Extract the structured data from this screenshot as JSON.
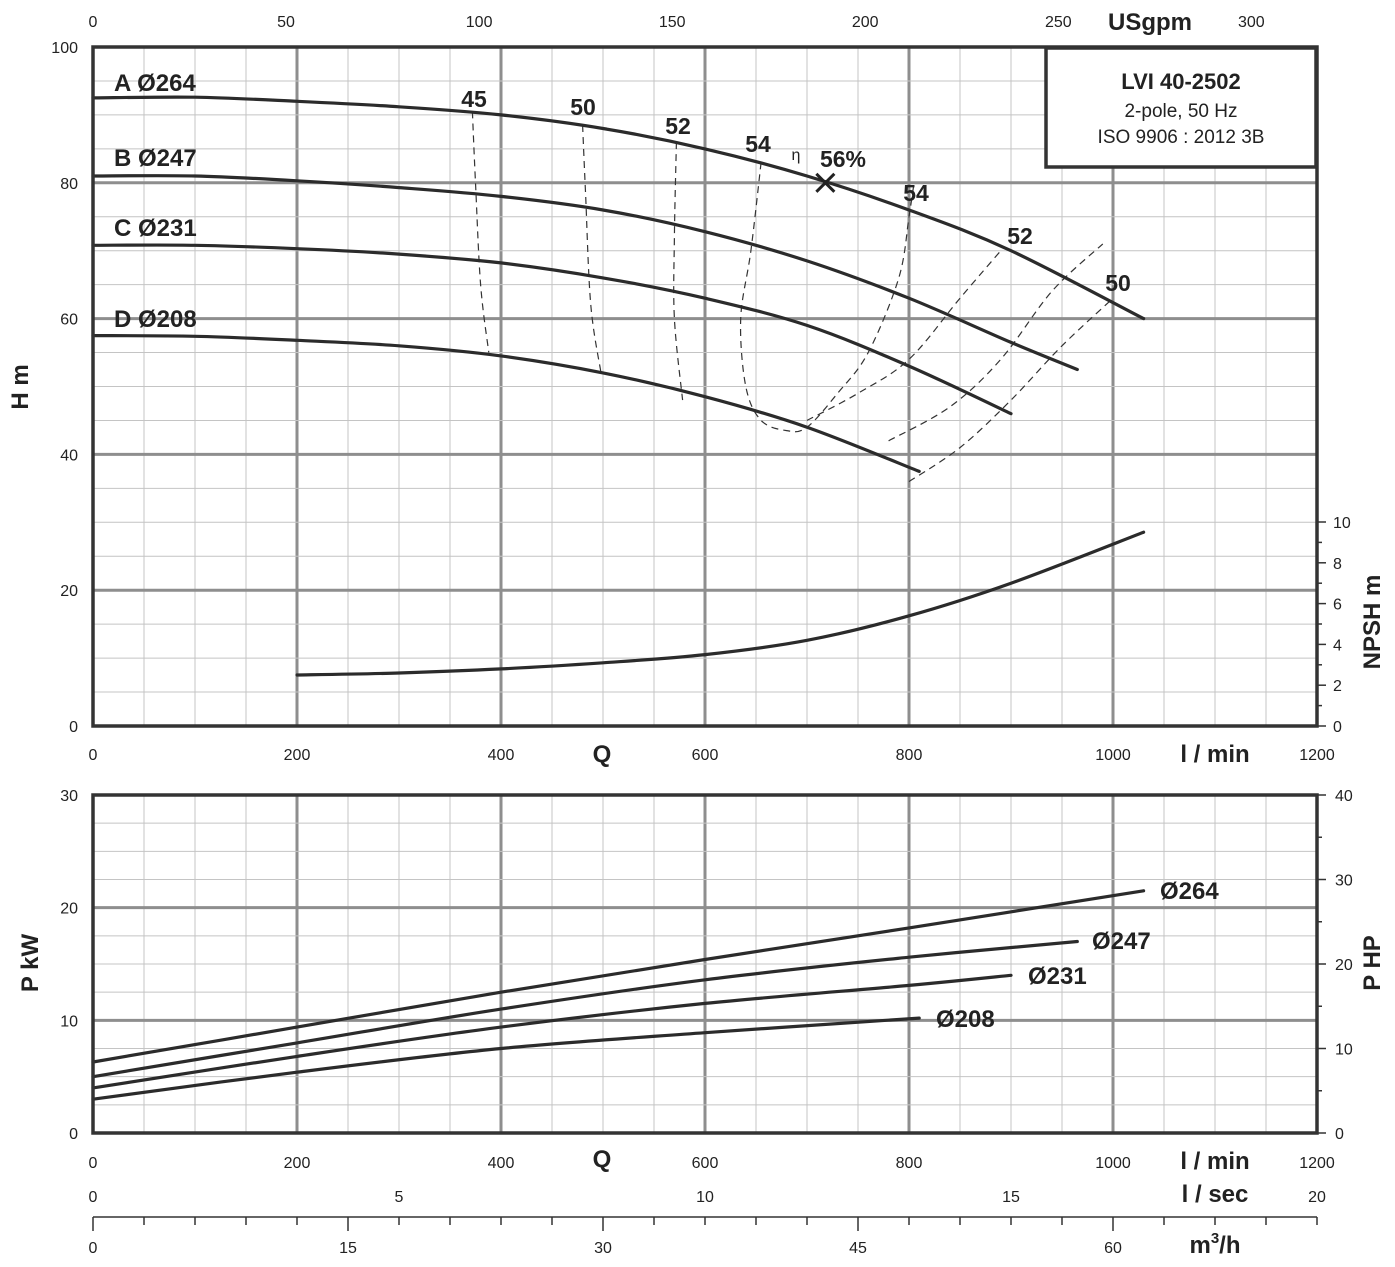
{
  "chart_data": {
    "type": "line",
    "info_box": {
      "model": "LVI 40-2502",
      "line2": "2-pole, 50 Hz",
      "line3": "ISO 9906 : 2012 3B"
    },
    "axes": {
      "q_lmin": {
        "label_left": "Q",
        "unit": "l / min",
        "range": [
          0,
          1200
        ],
        "ticks": [
          0,
          200,
          400,
          600,
          800,
          1000,
          1200
        ]
      },
      "q_usgpm": {
        "unit": "USgpm",
        "range": [
          0,
          317
        ],
        "ticks": [
          0,
          50,
          100,
          150,
          200,
          250,
          300
        ]
      },
      "q_lsec": {
        "unit": "l / sec",
        "range": [
          0,
          20
        ],
        "ticks": [
          0,
          5,
          10,
          15,
          20
        ]
      },
      "q_m3h": {
        "unit": "m³/h",
        "unit_base": "m",
        "unit_sup": "3",
        "unit_tail": "/h",
        "range": [
          0,
          72
        ],
        "ticks": [
          0,
          15,
          30,
          45,
          60
        ]
      },
      "head": {
        "label": "H m",
        "range": [
          0,
          100
        ],
        "ticks": [
          0,
          20,
          40,
          60,
          80,
          100
        ]
      },
      "npsh": {
        "label": "NPSH m",
        "range": [
          0,
          10
        ],
        "ticks": [
          0,
          2,
          4,
          6,
          8,
          10
        ]
      },
      "power_kw": {
        "label": "P kW",
        "range": [
          0,
          30
        ],
        "ticks": [
          0,
          10,
          20,
          30
        ]
      },
      "power_hp": {
        "label": "P HP",
        "range": [
          0,
          40
        ],
        "ticks": [
          0,
          10,
          20,
          30,
          40
        ]
      }
    },
    "head_curves": [
      {
        "name": "A Ø264",
        "x": [
          0,
          100,
          200,
          300,
          400,
          500,
          600,
          700,
          800,
          900,
          1030
        ],
        "y": [
          92.5,
          92.6,
          92.0,
          91.2,
          90.0,
          88.0,
          85.0,
          81.0,
          76.0,
          70.0,
          60.0
        ]
      },
      {
        "name": "B Ø247",
        "x": [
          0,
          100,
          200,
          300,
          400,
          500,
          600,
          700,
          800,
          900,
          965
        ],
        "y": [
          81.0,
          81.0,
          80.3,
          79.3,
          78.0,
          76.0,
          72.8,
          68.5,
          63.0,
          56.5,
          52.5
        ]
      },
      {
        "name": "C Ø231",
        "x": [
          0,
          100,
          200,
          300,
          400,
          500,
          600,
          700,
          800,
          900
        ],
        "y": [
          70.8,
          70.8,
          70.3,
          69.5,
          68.2,
          66.0,
          63.0,
          59.0,
          53.0,
          46.0
        ]
      },
      {
        "name": "D Ø208",
        "x": [
          0,
          100,
          200,
          300,
          400,
          500,
          600,
          700,
          810
        ],
        "y": [
          57.5,
          57.4,
          56.8,
          56.0,
          54.5,
          52.0,
          48.5,
          44.0,
          37.5
        ]
      }
    ],
    "npsh_curve": {
      "x": [
        200,
        300,
        400,
        500,
        600,
        700,
        800,
        900,
        1030
      ],
      "y": [
        2.5,
        2.6,
        2.8,
        3.1,
        3.5,
        4.2,
        5.4,
        7.0,
        9.5
      ]
    },
    "efficiency_contours": [
      {
        "label": "45",
        "x": [
          372,
          375,
          380,
          388
        ],
        "y": [
          90.5,
          80,
          65,
          55
        ]
      },
      {
        "label": "50",
        "x": [
          480,
          483,
          488,
          498
        ],
        "y": [
          88.5,
          78,
          62,
          52
        ]
      },
      {
        "label": "52",
        "x": [
          572,
          570,
          570,
          578
        ],
        "y": [
          86,
          72,
          60,
          48
        ]
      },
      {
        "label": "54",
        "x": [
          655,
          645,
          635,
          640,
          655,
          680,
          700,
          730,
          760,
          790,
          800,
          805
        ],
        "y": [
          83,
          70,
          60,
          50,
          45,
          43.5,
          44,
          49,
          55,
          66,
          75,
          80
        ]
      },
      {
        "label": "54",
        "x": [
          700,
          750,
          800,
          850,
          890
        ],
        "y": [
          45,
          49,
          54,
          63,
          70
        ]
      },
      {
        "label": "52",
        "x": [
          780,
          840,
          890,
          940,
          990
        ],
        "y": [
          42,
          47,
          54,
          64,
          71
        ]
      },
      {
        "label": "50",
        "x": [
          800,
          850,
          900,
          950,
          1000
        ],
        "y": [
          36,
          41,
          48,
          56,
          63
        ]
      }
    ],
    "eta_label": "η",
    "bep": {
      "label": "56%",
      "x": 718,
      "y": 80
    },
    "power_curves": [
      {
        "name": "Ø264",
        "x": [
          0,
          200,
          400,
          600,
          800,
          1030
        ],
        "y": [
          6.3,
          9.4,
          12.5,
          15.4,
          18.2,
          21.5
        ]
      },
      {
        "name": "Ø247",
        "x": [
          0,
          200,
          400,
          600,
          800,
          965
        ],
        "y": [
          5.0,
          8.0,
          11.0,
          13.6,
          15.6,
          17.0
        ]
      },
      {
        "name": "Ø231",
        "x": [
          0,
          200,
          400,
          600,
          800,
          900
        ],
        "y": [
          4.0,
          6.8,
          9.4,
          11.5,
          13.1,
          14.0
        ]
      },
      {
        "name": "Ø208",
        "x": [
          0,
          200,
          400,
          600,
          810
        ],
        "y": [
          3.0,
          5.4,
          7.5,
          8.9,
          10.2
        ]
      }
    ]
  }
}
